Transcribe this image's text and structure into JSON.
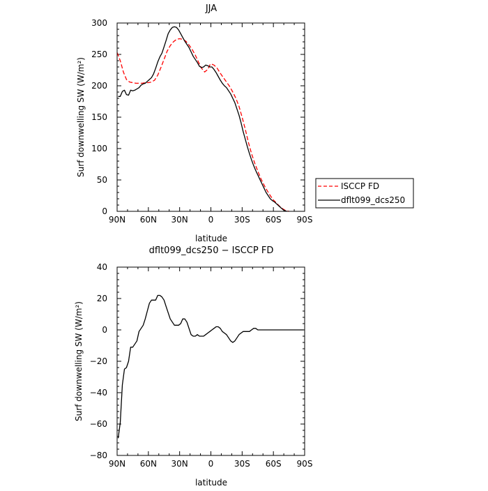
{
  "chart_data": [
    {
      "type": "line",
      "title": "JJA",
      "xlabel": "latitude",
      "ylabel": "Surf downwelling SW (W/m²)",
      "xlim": [
        90,
        -90
      ],
      "ylim": [
        0,
        300
      ],
      "x_ticks": [
        {
          "value": 90,
          "label": "90N"
        },
        {
          "value": 60,
          "label": "60N"
        },
        {
          "value": 30,
          "label": "30N"
        },
        {
          "value": 0,
          "label": "0"
        },
        {
          "value": -30,
          "label": "30S"
        },
        {
          "value": -60,
          "label": "60S"
        },
        {
          "value": -90,
          "label": "90S"
        }
      ],
      "y_ticks": [
        0,
        50,
        100,
        150,
        200,
        250,
        300
      ],
      "grid": false,
      "legend_position": "outside-right",
      "series": [
        {
          "name": "ISCCP FD",
          "color": "#ff0000",
          "dash": true,
          "points": [
            [
              90,
              253
            ],
            [
              87,
              240
            ],
            [
              84,
              222
            ],
            [
              81,
              210
            ],
            [
              78,
              206
            ],
            [
              75,
              205
            ],
            [
              72,
              204
            ],
            [
              69,
              204
            ],
            [
              66,
              204
            ],
            [
              63,
              205
            ],
            [
              60,
              205
            ],
            [
              57,
              206
            ],
            [
              54,
              209
            ],
            [
              51,
              217
            ],
            [
              48,
              229
            ],
            [
              45,
              242
            ],
            [
              42,
              255
            ],
            [
              39,
              264
            ],
            [
              36,
              270
            ],
            [
              33,
              274
            ],
            [
              30,
              275
            ],
            [
              27,
              274
            ],
            [
              24,
              271
            ],
            [
              21,
              265
            ],
            [
              18,
              258
            ],
            [
              15,
              249
            ],
            [
              12,
              238
            ],
            [
              9,
              228
            ],
            [
              6,
              222
            ],
            [
              3,
              226
            ],
            [
              1,
              233
            ],
            [
              0,
              235
            ],
            [
              -3,
              233
            ],
            [
              -6,
              228
            ],
            [
              -9,
              220
            ],
            [
              -12,
              213
            ],
            [
              -15,
              206
            ],
            [
              -18,
              199
            ],
            [
              -21,
              190
            ],
            [
              -24,
              180
            ],
            [
              -27,
              167
            ],
            [
              -30,
              150
            ],
            [
              -33,
              131
            ],
            [
              -36,
              110
            ],
            [
              -39,
              92
            ],
            [
              -42,
              77
            ],
            [
              -45,
              64
            ],
            [
              -48,
              52
            ],
            [
              -51,
              42
            ],
            [
              -54,
              33
            ],
            [
              -57,
              25
            ],
            [
              -60,
              18
            ],
            [
              -63,
              13
            ],
            [
              -66,
              8
            ],
            [
              -69,
              4
            ],
            [
              -72,
              1
            ],
            [
              -75,
              0
            ]
          ]
        },
        {
          "name": "dflt099_dcs250",
          "color": "#000000",
          "dash": false,
          "points": [
            [
              89,
              183
            ],
            [
              87,
              183
            ],
            [
              85,
              191
            ],
            [
              83,
              193
            ],
            [
              81,
              186
            ],
            [
              79,
              185
            ],
            [
              77,
              193
            ],
            [
              75,
              192
            ],
            [
              73,
              193
            ],
            [
              71,
              195
            ],
            [
              69,
              197
            ],
            [
              67,
              201
            ],
            [
              65,
              203
            ],
            [
              63,
              204
            ],
            [
              61,
              207
            ],
            [
              59,
              210
            ],
            [
              57,
              213
            ],
            [
              55,
              219
            ],
            [
              53,
              228
            ],
            [
              51,
              238
            ],
            [
              49,
              246
            ],
            [
              47,
              252
            ],
            [
              45,
              262
            ],
            [
              43,
              272
            ],
            [
              41,
              283
            ],
            [
              39,
              289
            ],
            [
              37,
              293
            ],
            [
              35,
              294
            ],
            [
              33,
              293
            ],
            [
              31,
              289
            ],
            [
              29,
              283
            ],
            [
              27,
              277
            ],
            [
              25,
              271
            ],
            [
              23,
              266
            ],
            [
              21,
              261
            ],
            [
              19,
              254
            ],
            [
              17,
              247
            ],
            [
              15,
              242
            ],
            [
              13,
              237
            ],
            [
              11,
              231
            ],
            [
              9,
              229
            ],
            [
              7,
              230
            ],
            [
              5,
              233
            ],
            [
              3,
              232
            ],
            [
              1,
              230
            ],
            [
              -1,
              230
            ],
            [
              -3,
              226
            ],
            [
              -5,
              221
            ],
            [
              -7,
              215
            ],
            [
              -9,
              209
            ],
            [
              -11,
              204
            ],
            [
              -13,
              200
            ],
            [
              -15,
              197
            ],
            [
              -17,
              192
            ],
            [
              -19,
              187
            ],
            [
              -21,
              180
            ],
            [
              -23,
              173
            ],
            [
              -25,
              163
            ],
            [
              -27,
              153
            ],
            [
              -29,
              141
            ],
            [
              -31,
              127
            ],
            [
              -33,
              115
            ],
            [
              -35,
              103
            ],
            [
              -37,
              92
            ],
            [
              -39,
              82
            ],
            [
              -41,
              73
            ],
            [
              -43,
              65
            ],
            [
              -45,
              58
            ],
            [
              -47,
              51
            ],
            [
              -49,
              44
            ],
            [
              -51,
              37
            ],
            [
              -53,
              30
            ],
            [
              -55,
              25
            ],
            [
              -57,
              20
            ],
            [
              -59,
              17
            ],
            [
              -61,
              15
            ],
            [
              -63,
              12
            ],
            [
              -65,
              9
            ],
            [
              -67,
              6
            ],
            [
              -69,
              3
            ],
            [
              -71,
              1
            ],
            [
              -73,
              0
            ]
          ]
        }
      ]
    },
    {
      "type": "line",
      "title": "dflt099_dcs250 − ISCCP FD",
      "xlabel": "latitude",
      "ylabel": "Surf downwelling SW (W/m²)",
      "xlim": [
        90,
        -90
      ],
      "ylim": [
        -80,
        40
      ],
      "x_ticks": [
        {
          "value": 90,
          "label": "90N"
        },
        {
          "value": 60,
          "label": "60N"
        },
        {
          "value": 30,
          "label": "30N"
        },
        {
          "value": 0,
          "label": "0"
        },
        {
          "value": -30,
          "label": "30S"
        },
        {
          "value": -60,
          "label": "60S"
        },
        {
          "value": -90,
          "label": "90S"
        }
      ],
      "y_ticks": [
        -80,
        -60,
        -40,
        -20,
        0,
        20,
        40
      ],
      "grid": false,
      "series": [
        {
          "color": "#000000",
          "dash": false,
          "points": [
            [
              89,
              -69
            ],
            [
              87,
              -59
            ],
            [
              85,
              -35
            ],
            [
              83,
              -25
            ],
            [
              81,
              -24
            ],
            [
              79,
              -20
            ],
            [
              77,
              -11
            ],
            [
              75,
              -11
            ],
            [
              73,
              -9
            ],
            [
              71,
              -7
            ],
            [
              69,
              -1
            ],
            [
              67,
              1
            ],
            [
              65,
              3
            ],
            [
              63,
              7
            ],
            [
              61,
              12
            ],
            [
              59,
              17
            ],
            [
              57,
              19
            ],
            [
              55,
              19
            ],
            [
              53,
              19
            ],
            [
              51,
              22
            ],
            [
              49,
              22
            ],
            [
              47,
              21
            ],
            [
              45,
              19
            ],
            [
              43,
              15
            ],
            [
              41,
              11
            ],
            [
              39,
              7
            ],
            [
              37,
              5
            ],
            [
              35,
              3
            ],
            [
              33,
              3
            ],
            [
              31,
              3
            ],
            [
              29,
              4
            ],
            [
              27,
              7
            ],
            [
              25,
              7
            ],
            [
              23,
              5
            ],
            [
              21,
              1
            ],
            [
              19,
              -3
            ],
            [
              17,
              -4
            ],
            [
              15,
              -4
            ],
            [
              13,
              -3
            ],
            [
              11,
              -4
            ],
            [
              9,
              -4
            ],
            [
              7,
              -4
            ],
            [
              5,
              -3
            ],
            [
              3,
              -2
            ],
            [
              1,
              -1
            ],
            [
              -1,
              0
            ],
            [
              -3,
              1
            ],
            [
              -5,
              2
            ],
            [
              -7,
              2
            ],
            [
              -9,
              1
            ],
            [
              -11,
              -1
            ],
            [
              -13,
              -2
            ],
            [
              -15,
              -3
            ],
            [
              -17,
              -5
            ],
            [
              -19,
              -7
            ],
            [
              -21,
              -8
            ],
            [
              -23,
              -7
            ],
            [
              -25,
              -5
            ],
            [
              -27,
              -3
            ],
            [
              -29,
              -2
            ],
            [
              -31,
              -1
            ],
            [
              -33,
              -1
            ],
            [
              -35,
              -1
            ],
            [
              -37,
              -1
            ],
            [
              -39,
              0
            ],
            [
              -41,
              1
            ],
            [
              -43,
              1
            ],
            [
              -45,
              0
            ],
            [
              -47,
              0
            ],
            [
              -49,
              0
            ],
            [
              -51,
              0
            ],
            [
              -53,
              0
            ],
            [
              -55,
              0
            ],
            [
              -57,
              0
            ],
            [
              -59,
              0
            ],
            [
              -61,
              0
            ],
            [
              -63,
              0
            ],
            [
              -65,
              0
            ],
            [
              -67,
              0
            ],
            [
              -69,
              0
            ],
            [
              -71,
              0
            ],
            [
              -73,
              0
            ],
            [
              -75,
              0
            ],
            [
              -78,
              0
            ],
            [
              -81,
              0
            ],
            [
              -84,
              0
            ],
            [
              -87,
              0
            ],
            [
              -89,
              0
            ]
          ]
        }
      ]
    }
  ],
  "legend": {
    "items": [
      {
        "label": "ISCCP FD",
        "color": "#ff0000",
        "dash": true
      },
      {
        "label": "dflt099_dcs250",
        "color": "#000000",
        "dash": false
      }
    ]
  }
}
